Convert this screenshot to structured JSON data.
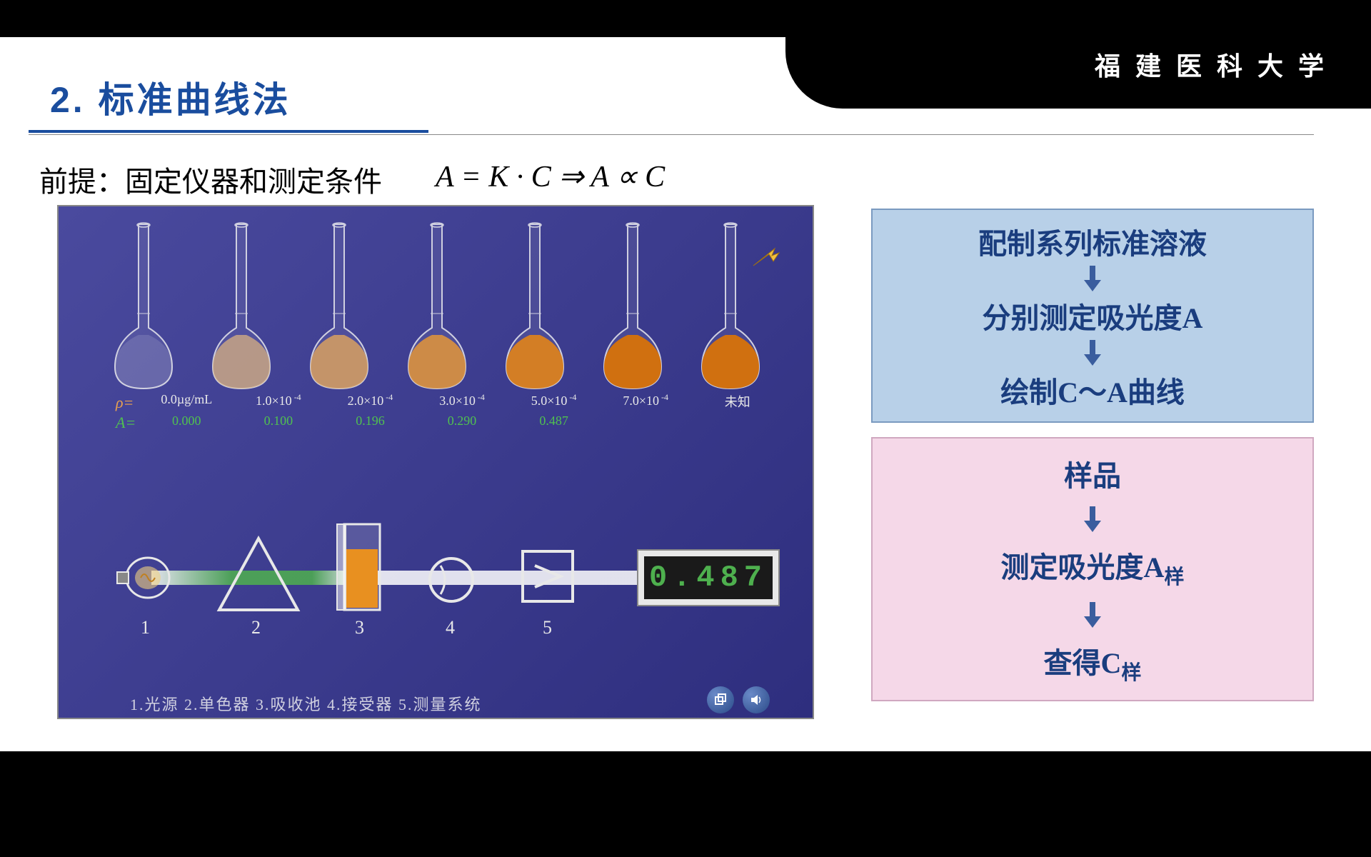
{
  "university": "福 建 医 科 大 学",
  "title": "2. 标准曲线法",
  "premise": "前提：固定仪器和测定条件",
  "formula": "A = K · C ⇒ A ∝ C",
  "diagram": {
    "bg_gradient": [
      "#4a4a9e",
      "#2e2e7e"
    ],
    "rho_label": "ρ=",
    "a_label": "A=",
    "flasks": [
      {
        "conc": "0.0µg/mL",
        "abs": "0.000",
        "fill": "#e8e8e8",
        "fill_opacity": 0.15
      },
      {
        "conc": "1.0×10⁻⁴",
        "abs": "0.100",
        "fill": "#d8b080",
        "fill_opacity": 0.75
      },
      {
        "conc": "2.0×10⁻⁴",
        "abs": "0.196",
        "fill": "#d8a060",
        "fill_opacity": 0.85
      },
      {
        "conc": "3.0×10⁻⁴",
        "abs": "0.290",
        "fill": "#d89040",
        "fill_opacity": 0.92
      },
      {
        "conc": "5.0×10⁻⁴",
        "abs": "0.487",
        "fill": "#d88020",
        "fill_opacity": 0.96
      },
      {
        "conc": "7.0×10⁻⁴",
        "abs": "",
        "fill": "#d07010",
        "fill_opacity": 1.0
      },
      {
        "conc": "未知",
        "abs": "",
        "fill": "#d07010",
        "fill_opacity": 1.0
      }
    ],
    "arrow_color": "#f0c040",
    "instrument": {
      "beam_colors": [
        "#ffffff",
        "#4eb04e"
      ],
      "cuvette_fill": "#e89020",
      "display_value": "0.487",
      "display_bg": "#1a1a1a",
      "display_fg": "#4eb04e",
      "labels": [
        "1",
        "2",
        "3",
        "4",
        "5"
      ],
      "legend": "1.光源  2.单色器  3.吸收池  4.接受器  5.测量系统"
    }
  },
  "flow": {
    "box1_bg": "#b8d0e8",
    "box2_bg": "#f5d8e8",
    "text_color": "#1a3d7e",
    "arrow_color": "#3a5d9e",
    "box1_steps": [
      "配制系列标准溶液",
      "分别测定吸光度A",
      "绘制C～A曲线"
    ],
    "box2_steps": [
      "样品",
      "测定吸光度A样",
      "查得C样"
    ]
  },
  "colors": {
    "title": "#1a4d9e",
    "black": "#000000",
    "white": "#ffffff"
  }
}
